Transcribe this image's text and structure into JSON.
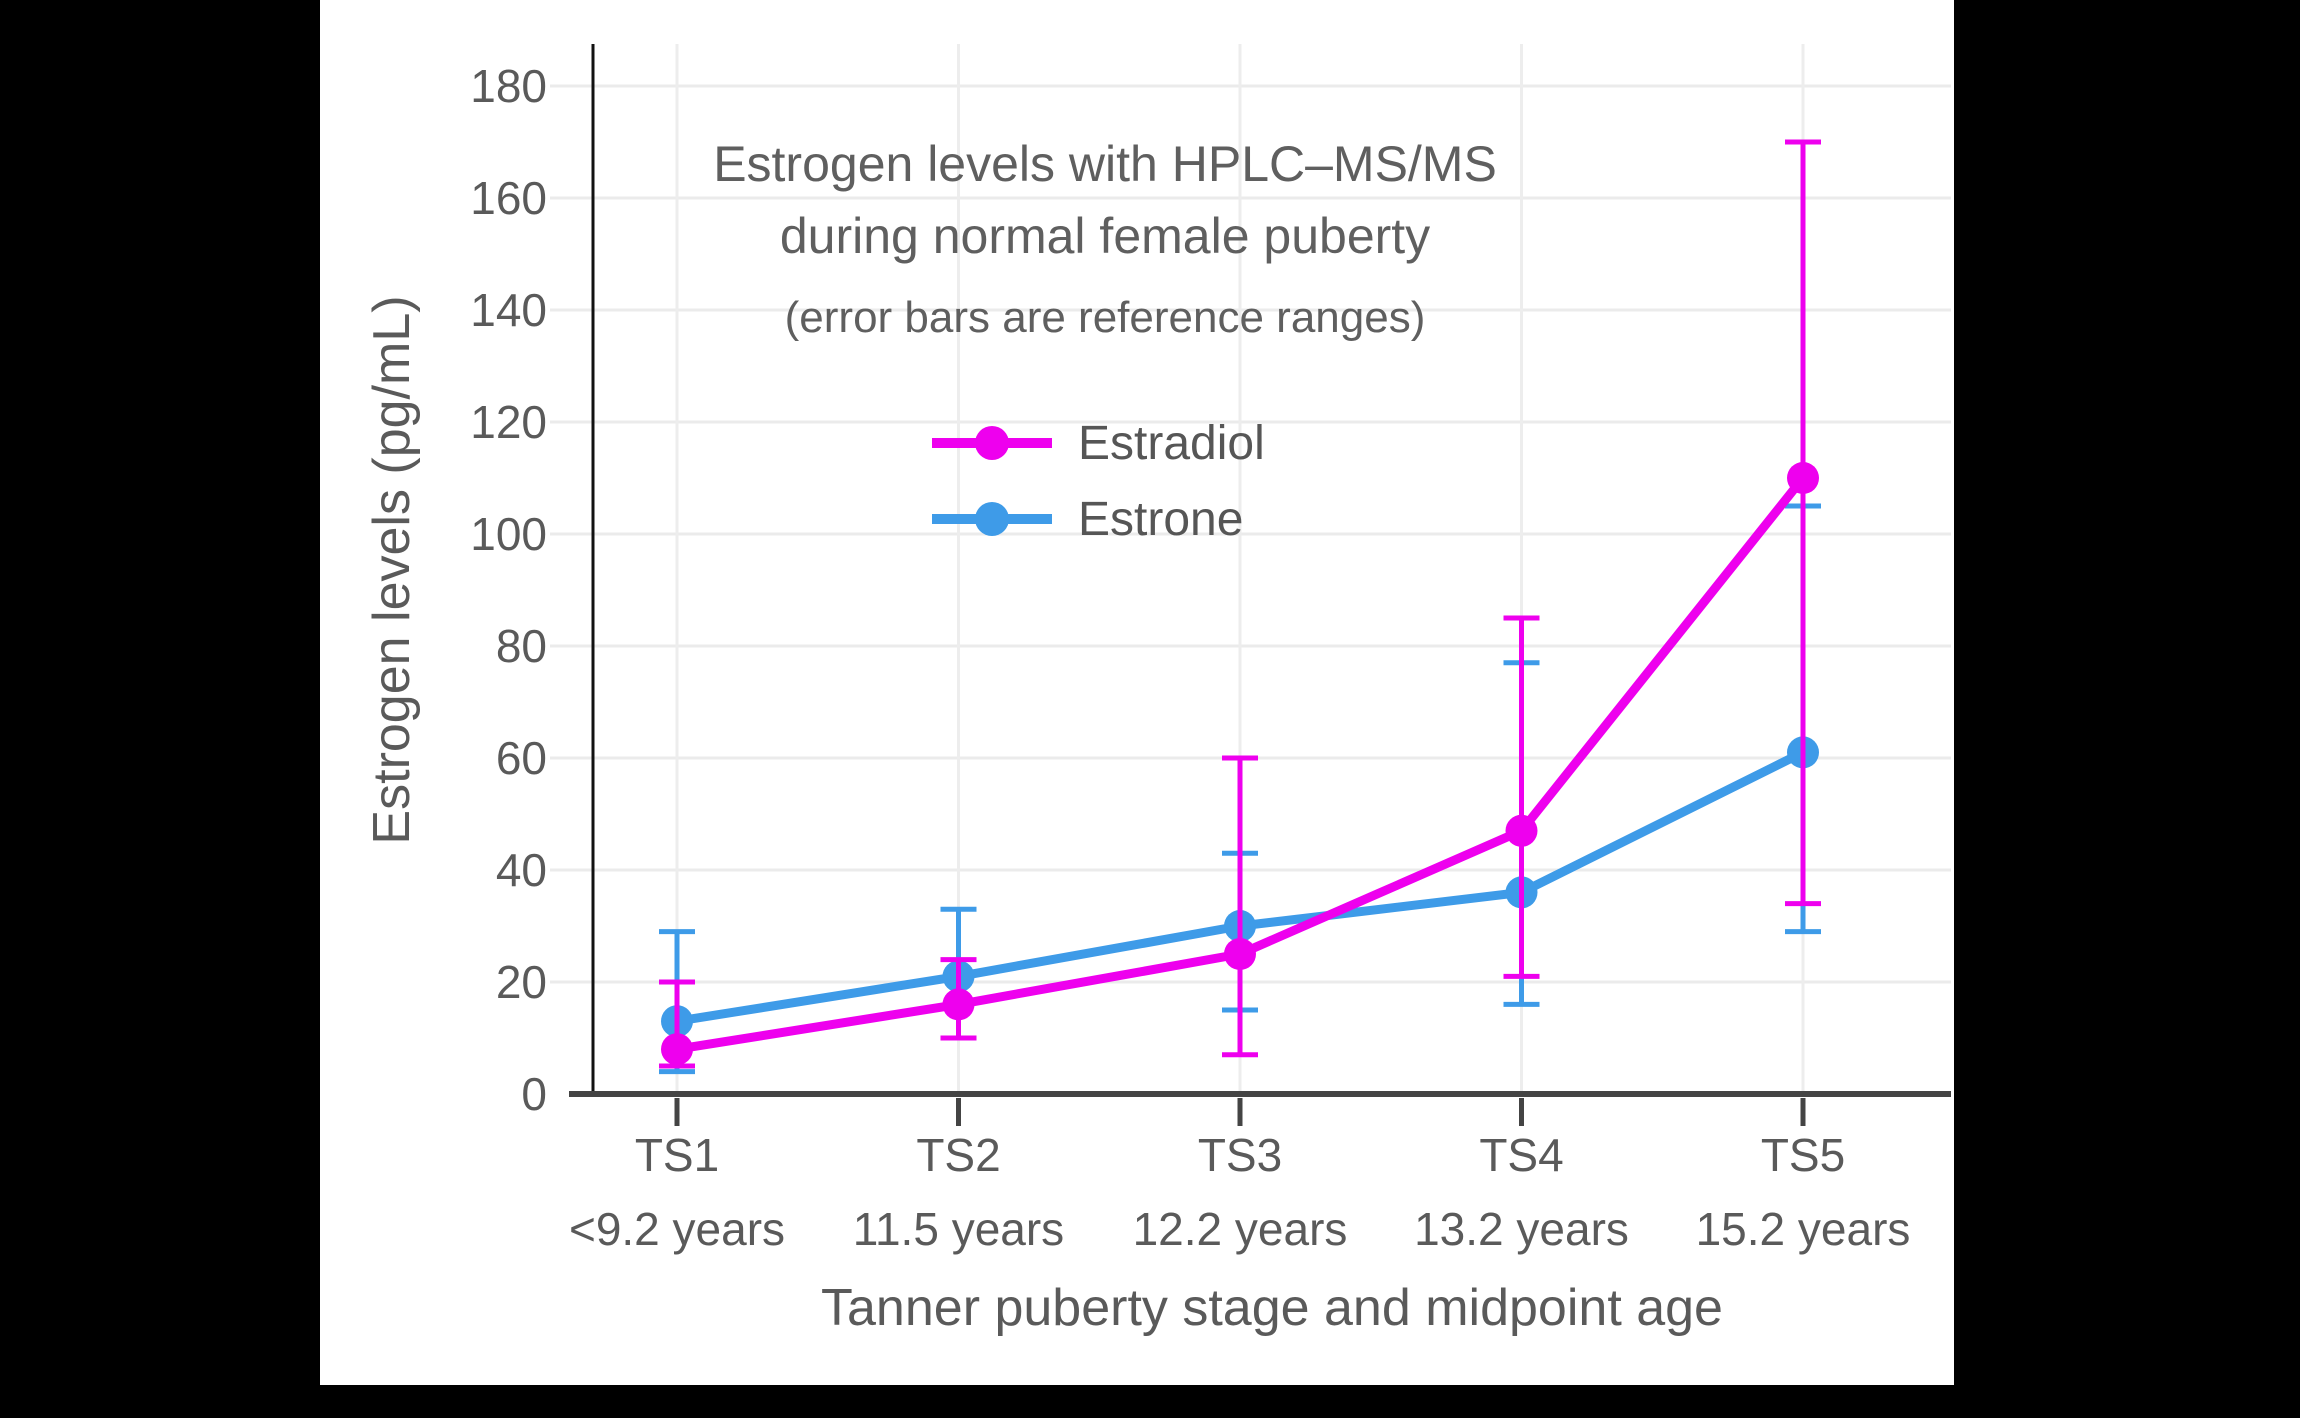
{
  "frame": {
    "background": "#000000",
    "panel_background": "#ffffff"
  },
  "chart_data": {
    "type": "line",
    "title": "Estrogen levels with HPLC–MS/MS during normal female puberty",
    "title_line1": "Estrogen levels with HPLC–MS/MS",
    "title_line2": "during normal female puberty",
    "subtitle": "(error bars are reference ranges)",
    "xlabel": "Tanner puberty stage and midpoint age",
    "ylabel": "Estrogen levels (pg/mL)",
    "units": "pg/mL",
    "categories": [
      "TS1",
      "TS2",
      "TS3",
      "TS4",
      "TS5"
    ],
    "category_sublabels": [
      "<9.2 years",
      "11.5 years",
      "12.2 years",
      "13.2 years",
      "15.2 years"
    ],
    "yticks": [
      0,
      20,
      40,
      60,
      80,
      100,
      120,
      140,
      160,
      180
    ],
    "ylim": [
      0,
      187
    ],
    "grid": true,
    "legend_position": "inside-upper-center",
    "error_bar_meaning": "reference ranges",
    "series": [
      {
        "name": "Estradiol",
        "color": "#EE00EE",
        "values": [
          8,
          16,
          25,
          47,
          110
        ],
        "error_low": [
          5,
          10,
          7,
          21,
          34
        ],
        "error_high": [
          20,
          24,
          60,
          85,
          170
        ]
      },
      {
        "name": "Estrone",
        "color": "#3E9BE8",
        "values": [
          13,
          21,
          30,
          36,
          61
        ],
        "error_low": [
          4,
          10,
          15,
          16,
          29
        ],
        "error_high": [
          29,
          33,
          43,
          77,
          105
        ]
      }
    ]
  }
}
